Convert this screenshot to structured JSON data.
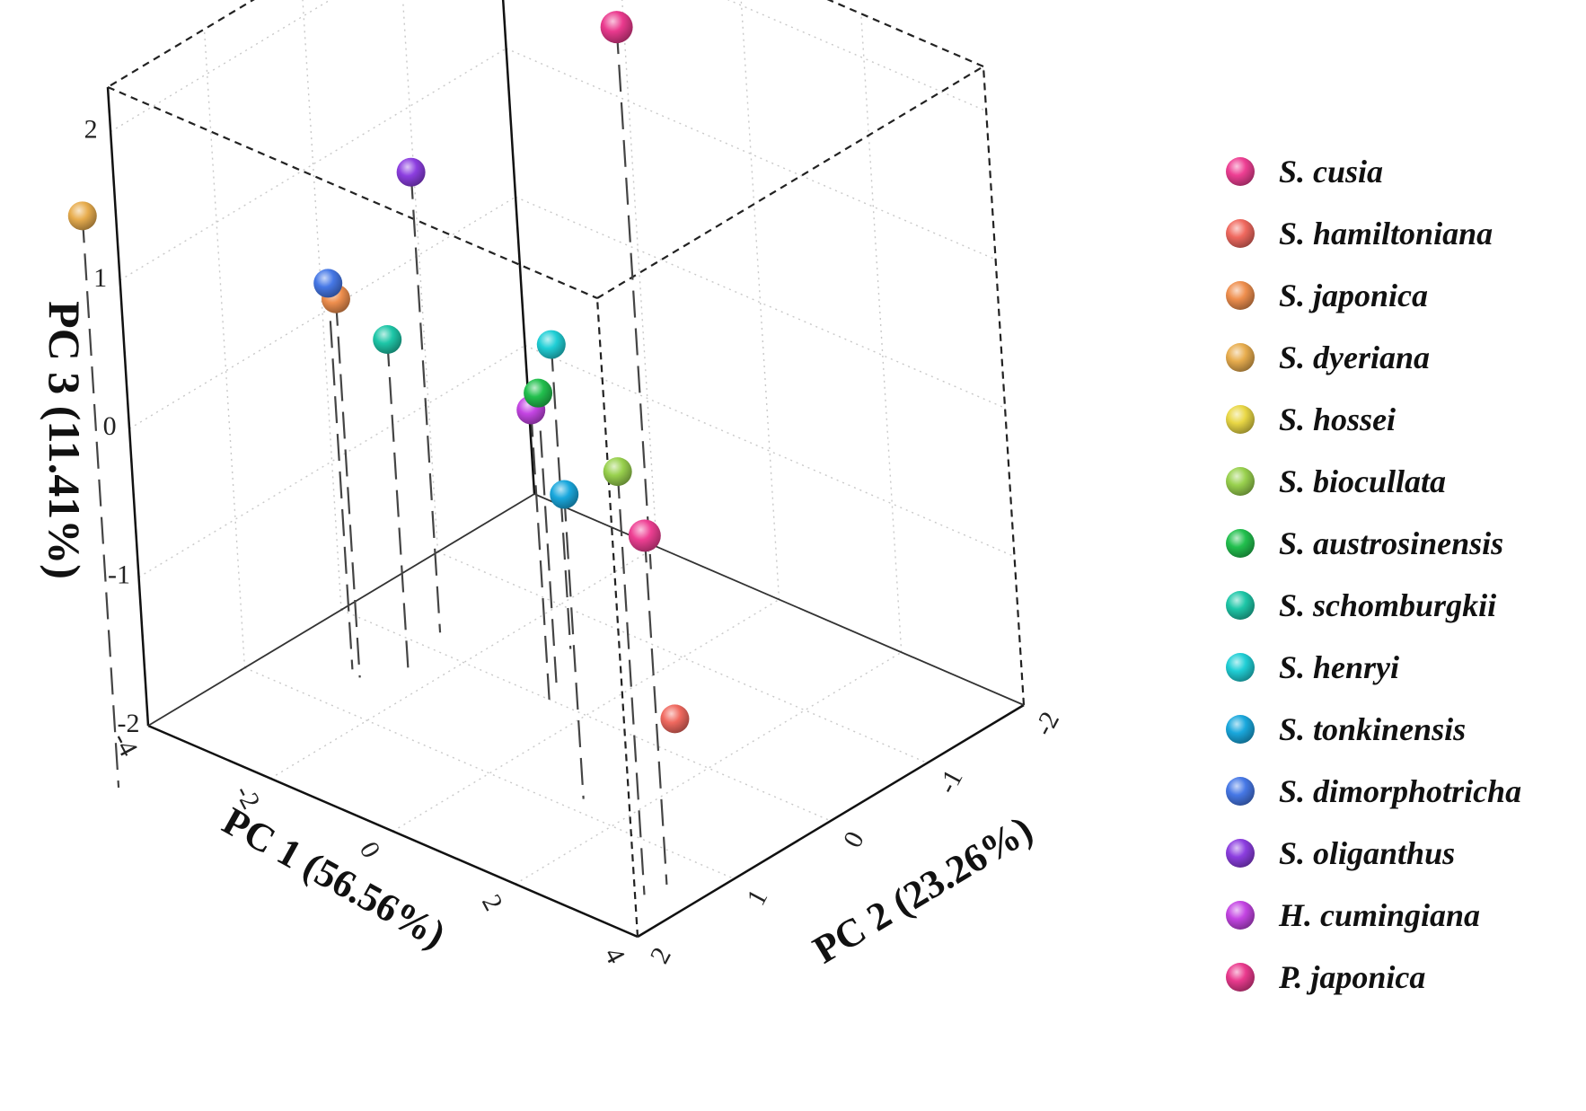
{
  "chart_data": {
    "type": "scatter3d",
    "title": "",
    "axes": {
      "x": {
        "label": "PC 1 (56.56%)",
        "range": [
          -4,
          4
        ],
        "ticks": [
          "-4",
          "-2",
          "0",
          "2",
          "4"
        ],
        "tick_values": [
          -4,
          -2,
          0,
          2,
          4
        ]
      },
      "y": {
        "label": "PC 2 (23.26%)",
        "range": [
          -2,
          2
        ],
        "ticks": [
          "-2",
          "-1",
          "0",
          "1",
          "2"
        ],
        "tick_values": [
          -2,
          -1,
          0,
          1,
          2
        ]
      },
      "z": {
        "label": "PC 3 (11.41%)",
        "range": [
          -2,
          2.3
        ],
        "ticks": [
          "-2",
          "-1",
          "0",
          "1",
          "2"
        ],
        "tick_values": [
          -2,
          -1,
          0,
          1,
          2
        ]
      }
    },
    "grid": true,
    "legend_position": "right",
    "series": [
      {
        "name": "S. cusia",
        "color": "#ee3f93",
        "x": 3.45,
        "y": 1.35,
        "z": 0.35
      },
      {
        "name": "S. hamiltoniana",
        "color": "#f0695f",
        "x": 0.9,
        "y": -0.35,
        "z": -2.0
      },
      {
        "name": "S. japonica",
        "color": "#ef8f4e",
        "x": -2.75,
        "y": 0.6,
        "z": 0.55
      },
      {
        "name": "S. dyeriana",
        "color": "#e8ad4e",
        "x": -3.3,
        "y": 2.75,
        "z": 1.85
      },
      {
        "name": "S. hossei",
        "color": "#e9d745",
        "x": null,
        "y": null,
        "z": null
      },
      {
        "name": "S. biocullata",
        "color": "#99d14e",
        "x": 3.4,
        "y": 1.55,
        "z": 0.85
      },
      {
        "name": "S. austrosinensis",
        "color": "#22c04e",
        "x": -0.8,
        "y": -0.2,
        "z": -0.05
      },
      {
        "name": "S. schomburgkii",
        "color": "#1ec7a8",
        "x": -2.35,
        "y": 0.35,
        "z": 0.25
      },
      {
        "name": "S. henryi",
        "color": "#20cfd6",
        "x": -1.2,
        "y": -0.6,
        "z": 0.05
      },
      {
        "name": "S. tonkinensis",
        "color": "#1aa8dd",
        "x": 1.3,
        "y": 0.85,
        "z": 0.05
      },
      {
        "name": "S. dimorphotricha",
        "color": "#4678e6",
        "x": -2.95,
        "y": 0.55,
        "z": 0.6
      },
      {
        "name": "S. oliganthus",
        "color": "#8c3ee0",
        "x": -2.7,
        "y": -0.2,
        "z": 1.1
      },
      {
        "name": "H. cumingiana",
        "color": "#c445e3",
        "x": -0.6,
        "y": 0.0,
        "z": -0.05
      },
      {
        "name": "P. japonica",
        "color": "#ea3a8e",
        "x": -1.7,
        "y": -1.75,
        "z": 1.65
      }
    ]
  }
}
